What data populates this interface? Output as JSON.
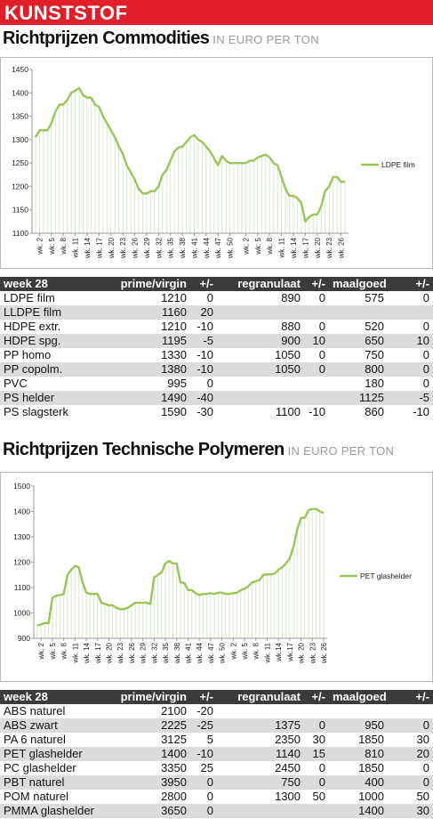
{
  "header": "KUNSTSTOF",
  "chart_data": [
    {
      "type": "line",
      "title": "Richtprijzen Commodities",
      "subtitle": "IN EURO PER TON",
      "categories": [
        null,
        "wk. 2",
        null,
        null,
        "wk. 5",
        null,
        null,
        "wk. 8",
        null,
        null,
        "wk. 11",
        null,
        null,
        "wk. 14",
        null,
        null,
        "wk. 17",
        null,
        null,
        "wk. 20",
        null,
        null,
        "wk. 23",
        null,
        null,
        "wk. 26",
        null,
        null,
        "wk. 29",
        null,
        null,
        "wk. 32",
        null,
        null,
        "wk. 35",
        null,
        null,
        "wk. 38",
        null,
        null,
        "wk. 41",
        null,
        null,
        "wk. 44",
        null,
        null,
        "wk. 47",
        null,
        null,
        "wk. 50",
        null,
        null,
        null,
        "wk. 2",
        null,
        null,
        "wk. 5",
        null,
        null,
        "wk. 8",
        null,
        null,
        "wk. 11",
        null,
        null,
        "wk. 14",
        null,
        null,
        "wk. 17",
        null,
        null,
        "wk. 20",
        null,
        null,
        "wk. 23",
        null,
        null,
        "wk. 26",
        null
      ],
      "series": [
        {
          "name": "LDPE film",
          "color": "#9bc45a",
          "values": [
            1305,
            1320,
            1320,
            1320,
            1335,
            1360,
            1375,
            1375,
            1385,
            1400,
            1405,
            1410,
            1395,
            1390,
            1390,
            1375,
            1370,
            1350,
            1335,
            1320,
            1305,
            1285,
            1270,
            1245,
            1230,
            1215,
            1195,
            1185,
            1185,
            1190,
            1190,
            1200,
            1225,
            1235,
            1255,
            1275,
            1283,
            1285,
            1295,
            1305,
            1310,
            1300,
            1295,
            1285,
            1275,
            1260,
            1245,
            1265,
            1255,
            1250,
            1250,
            1250,
            1250,
            1250,
            1255,
            1255,
            1262,
            1265,
            1268,
            1262,
            1250,
            1245,
            1220,
            1195,
            1180,
            1180,
            1175,
            1165,
            1125,
            1135,
            1140,
            1140,
            1158,
            1190,
            1200,
            1220,
            1220,
            1210,
            1210
          ]
        }
      ],
      "ylim": [
        1100,
        1450
      ],
      "yticks": [
        1100,
        1150,
        1200,
        1250,
        1300,
        1350,
        1400,
        1450
      ],
      "drop_lines": true,
      "drop_color": "#dbe9cb",
      "legend": "right"
    },
    {
      "type": "line",
      "title": "Richtprijzen Technische Polymeren",
      "subtitle": "IN EURO PER TON",
      "categories": [
        null,
        "wk. 2",
        null,
        null,
        "wk. 5",
        null,
        null,
        "wk. 8",
        null,
        null,
        "wk. 11",
        null,
        null,
        "wk. 14",
        null,
        null,
        "wk. 17",
        null,
        null,
        "wk. 20",
        null,
        null,
        "wk. 23",
        null,
        null,
        "wk. 26",
        null,
        null,
        "wk. 29",
        null,
        null,
        "wk. 32",
        null,
        null,
        "wk. 35",
        null,
        null,
        "wk. 38",
        null,
        null,
        "wk. 41",
        null,
        null,
        "wk. 44",
        null,
        null,
        "wk. 47",
        null,
        null,
        "wk. 50",
        null,
        null,
        "wk. 2",
        null,
        null,
        "wk. 5",
        null,
        null,
        "wk. 8",
        null,
        null,
        "wk. 11",
        null,
        null,
        "wk.14",
        null,
        null,
        "wk.17",
        null,
        null,
        "wk. 20",
        null,
        null,
        "wk. 23",
        null,
        null,
        "wk. 26"
      ],
      "series": [
        {
          "name": "PET glashelder",
          "color": "#9bc45a",
          "values": [
            950,
            955,
            960,
            960,
            1060,
            1068,
            1070,
            1075,
            1150,
            1170,
            1185,
            1180,
            1120,
            1080,
            1075,
            1075,
            1075,
            1040,
            1035,
            1030,
            1030,
            1020,
            1015,
            1015,
            1020,
            1030,
            1040,
            1040,
            1040,
            1040,
            1035,
            1140,
            1150,
            1160,
            1195,
            1205,
            1195,
            1195,
            1120,
            1118,
            1090,
            1090,
            1078,
            1070,
            1075,
            1075,
            1078,
            1075,
            1080,
            1080,
            1075,
            1075,
            1078,
            1080,
            1090,
            1095,
            1105,
            1120,
            1125,
            1130,
            1150,
            1152,
            1152,
            1155,
            1170,
            1180,
            1195,
            1215,
            1260,
            1330,
            1375,
            1375,
            1405,
            1410,
            1410,
            1400,
            1395
          ]
        }
      ],
      "ylim": [
        900,
        1500
      ],
      "yticks": [
        900,
        1000,
        1100,
        1200,
        1300,
        1400,
        1500
      ],
      "drop_lines": true,
      "drop_color": "#dbe9cb",
      "legend": "right"
    }
  ],
  "tables": [
    {
      "columns": [
        "week 28",
        "prime/virgin",
        "+/-",
        "regranulaat",
        "+/-",
        "maalgoed",
        "+/-"
      ],
      "rows": [
        [
          "LDPE film",
          1210,
          0,
          890,
          0,
          575,
          0
        ],
        [
          "LLDPE film",
          1160,
          20,
          null,
          null,
          null,
          null
        ],
        [
          "HDPE extr.",
          1210,
          -10,
          880,
          0,
          520,
          0
        ],
        [
          "HDPE spg.",
          1195,
          -5,
          900,
          10,
          650,
          10
        ],
        [
          "PP homo",
          1330,
          -10,
          1050,
          0,
          750,
          0
        ],
        [
          "PP copolm.",
          1380,
          -10,
          1050,
          0,
          800,
          0
        ],
        [
          "PVC",
          995,
          0,
          null,
          null,
          180,
          0
        ],
        [
          "PS helder",
          1490,
          -40,
          null,
          null,
          1125,
          -5
        ],
        [
          "PS slagsterk",
          1590,
          -30,
          1100,
          -10,
          860,
          -10
        ]
      ]
    },
    {
      "columns": [
        "week 28",
        "prime/virgin",
        "+/-",
        "regranulaat",
        "+/-",
        "maalgoed",
        "+/-"
      ],
      "rows": [
        [
          "ABS naturel",
          2100,
          -20,
          null,
          null,
          null,
          null
        ],
        [
          "ABS zwart",
          2225,
          -25,
          1375,
          0,
          950,
          0
        ],
        [
          "PA 6 naturel",
          3125,
          5,
          2350,
          30,
          1850,
          30
        ],
        [
          "PET glashelder",
          1400,
          -10,
          1140,
          15,
          810,
          20
        ],
        [
          "PC glashelder",
          3350,
          25,
          2450,
          0,
          1850,
          0
        ],
        [
          "PBT naturel",
          3950,
          0,
          750,
          0,
          400,
          0
        ],
        [
          "POM naturel",
          2800,
          0,
          1300,
          50,
          1000,
          50
        ],
        [
          "PMMA glashelder",
          3650,
          0,
          null,
          null,
          1400,
          30
        ]
      ]
    }
  ]
}
